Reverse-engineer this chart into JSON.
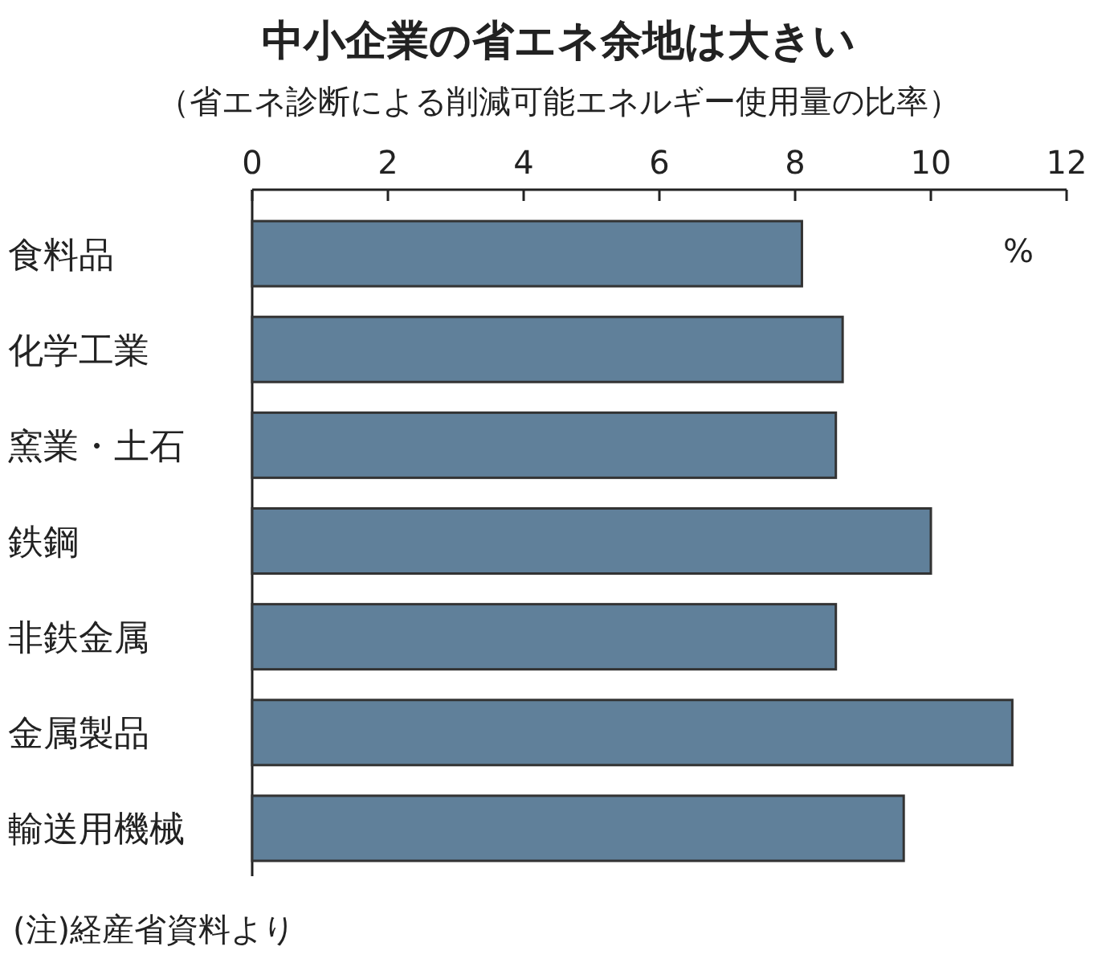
{
  "chart_data": {
    "type": "bar",
    "orientation": "horizontal",
    "title": "中小企業の省エネ余地は大きい",
    "subtitle": "（省エネ診断による削減可能エネルギー使用量の比率）",
    "xlabel": "%",
    "categories": [
      "食料品",
      "化学工業",
      "窯業・土石",
      "鉄鋼",
      "非鉄金属",
      "金属製品",
      "輸送用機械"
    ],
    "values": [
      8.1,
      8.7,
      8.6,
      10.0,
      8.6,
      11.2,
      9.6
    ],
    "color": "#60809a",
    "xlim": [
      0,
      12
    ],
    "xticks": [
      0,
      2,
      4,
      6,
      8,
      10,
      12
    ],
    "annotations": [
      "(注)経産省資料より"
    ]
  }
}
